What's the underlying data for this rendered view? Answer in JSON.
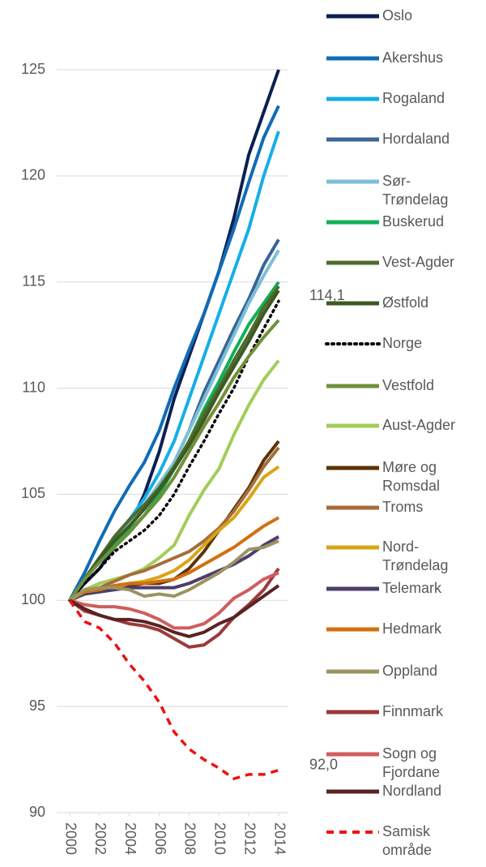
{
  "chart_data": {
    "type": "line",
    "x": [
      2000,
      2001,
      2002,
      2003,
      2004,
      2005,
      2006,
      2007,
      2008,
      2009,
      2010,
      2011,
      2012,
      2013,
      2014
    ],
    "xlim": [
      2000,
      2014
    ],
    "xticks": [
      2000,
      2002,
      2004,
      2006,
      2008,
      2010,
      2012,
      2014
    ],
    "ylim": [
      90,
      125
    ],
    "yticks": [
      90,
      95,
      100,
      105,
      110,
      115,
      120,
      125
    ],
    "grid": true,
    "annotations": [
      {
        "text": "114,1",
        "x": 2014,
        "y": 114.1
      },
      {
        "text": "92,0",
        "x": 2014,
        "y": 92
      }
    ],
    "series": [
      {
        "name": "Oslo",
        "color": "#0b2050",
        "values": [
          100,
          100.8,
          101.5,
          102.5,
          103.5,
          105,
          107,
          109.5,
          111.5,
          113.5,
          115.5,
          118,
          121,
          123,
          125
        ]
      },
      {
        "name": "Akershus",
        "color": "#0f6cb6",
        "values": [
          100,
          101.3,
          102.8,
          104.2,
          105.4,
          106.5,
          108,
          110,
          111.8,
          113.5,
          115.5,
          117.5,
          119.7,
          121.8,
          123.3
        ]
      },
      {
        "name": "Rogaland",
        "color": "#16aee8",
        "values": [
          100,
          101,
          102,
          103,
          103.8,
          104.8,
          106,
          107.5,
          109.5,
          111.5,
          113.5,
          115.5,
          117.5,
          120,
          122.1
        ]
      },
      {
        "name": "Hordaland",
        "color": "#3a6595",
        "values": [
          100,
          101,
          102,
          103,
          103.8,
          104.5,
          105.3,
          106.5,
          108,
          109.8,
          111.3,
          112.8,
          114.2,
          115.8,
          117
        ]
      },
      {
        "name": "Sør-Trøndelag",
        "color": "#7bbfd8",
        "values": [
          100,
          101,
          102,
          102.8,
          103.6,
          104.5,
          105.5,
          106.5,
          108,
          109.5,
          111,
          112.5,
          114,
          115.3,
          116.5
        ]
      },
      {
        "name": "Buskerud",
        "color": "#10b05a",
        "values": [
          100,
          101,
          102,
          102.7,
          103.3,
          104,
          105,
          106.2,
          107.5,
          109,
          110.3,
          111.7,
          113,
          114,
          115
        ]
      },
      {
        "name": "Vest-Agder",
        "color": "#4f6b2c",
        "values": [
          100,
          101,
          102,
          103,
          103.8,
          104.5,
          105.3,
          106.3,
          107.5,
          108.8,
          110,
          111.3,
          112.5,
          113.8,
          114.8
        ]
      },
      {
        "name": "Østfold",
        "color": "#3d5a22",
        "values": [
          100,
          101,
          102,
          102.8,
          103.5,
          104.3,
          105.2,
          106.2,
          107.3,
          108.5,
          109.8,
          111,
          112.2,
          113.5,
          114.6
        ]
      },
      {
        "name": "Norge",
        "color": "#000000",
        "style": "dotted",
        "values": [
          100,
          100.8,
          101.5,
          102.3,
          102.8,
          103.3,
          104,
          105,
          106.3,
          107.5,
          108.8,
          110,
          111.5,
          112.8,
          114.1
        ]
      },
      {
        "name": "Vestfold",
        "color": "#70903a",
        "values": [
          100,
          101,
          101.8,
          102.5,
          103.2,
          104,
          104.8,
          105.8,
          107,
          108.2,
          109.3,
          110.5,
          111.5,
          112.4,
          113.2
        ]
      },
      {
        "name": "Aust-Agder",
        "color": "#a3cc5a",
        "values": [
          100,
          100.5,
          100.8,
          101,
          101.2,
          101.5,
          102,
          102.6,
          104,
          105.2,
          106.2,
          107.8,
          109.2,
          110.4,
          111.3
        ]
      },
      {
        "name": "Møre og Romsdal",
        "color": "#5c3406",
        "values": [
          100,
          100.3,
          100.5,
          100.7,
          100.7,
          100.8,
          100.8,
          101,
          101.5,
          102.3,
          103.3,
          104.3,
          105.3,
          106.6,
          107.5
        ]
      },
      {
        "name": "Troms",
        "color": "#a56d3a",
        "values": [
          100,
          100.5,
          100.6,
          100.9,
          101.2,
          101.4,
          101.7,
          102,
          102.3,
          102.8,
          103.4,
          104.2,
          105.2,
          106.3,
          107.2
        ]
      },
      {
        "name": "Nord-Trøndelag",
        "color": "#d9a514",
        "values": [
          100,
          100.3,
          100.4,
          100.6,
          100.8,
          100.9,
          101.1,
          101.4,
          101.9,
          102.6,
          103.3,
          103.9,
          104.8,
          105.8,
          106.3
        ]
      },
      {
        "name": "Telemark",
        "color": "#4b3e6b",
        "values": [
          100,
          100.3,
          100.4,
          100.5,
          100.6,
          100.6,
          100.6,
          100.6,
          100.8,
          101.1,
          101.4,
          101.7,
          102.1,
          102.6,
          103
        ]
      },
      {
        "name": "Hedmark",
        "color": "#d2700f",
        "values": [
          100,
          100.4,
          100.5,
          100.7,
          100.8,
          100.8,
          100.9,
          101,
          101.3,
          101.7,
          102.1,
          102.5,
          103,
          103.5,
          103.9
        ]
      },
      {
        "name": "Oppland",
        "color": "#9b9462",
        "values": [
          100,
          100.5,
          100.6,
          100.6,
          100.5,
          100.2,
          100.3,
          100.2,
          100.5,
          100.9,
          101.3,
          101.8,
          102.4,
          102.5,
          102.8
        ]
      },
      {
        "name": "Finnmark",
        "color": "#9c3a3a",
        "values": [
          100,
          99.5,
          99.3,
          99.1,
          98.9,
          98.8,
          98.6,
          98.2,
          97.8,
          97.9,
          98.4,
          99.2,
          99.8,
          100.5,
          101.5
        ]
      },
      {
        "name": "Sogn og Fjordane",
        "color": "#cf5e5e",
        "values": [
          100,
          99.8,
          99.7,
          99.7,
          99.6,
          99.4,
          99.1,
          98.7,
          98.7,
          98.9,
          99.4,
          100.1,
          100.5,
          101,
          101.3
        ]
      },
      {
        "name": "Nordland",
        "color": "#5a2222",
        "values": [
          100,
          99.6,
          99.3,
          99.1,
          99.1,
          99,
          98.8,
          98.5,
          98.3,
          98.5,
          98.9,
          99.2,
          99.7,
          100.2,
          100.7
        ]
      },
      {
        "name": "Samisk område",
        "color": "#ee1111",
        "style": "dashed",
        "values": [
          100,
          99,
          98.7,
          98,
          97,
          96.2,
          95.2,
          93.8,
          93,
          92.5,
          92.1,
          91.6,
          91.8,
          91.8,
          92
        ]
      }
    ]
  }
}
